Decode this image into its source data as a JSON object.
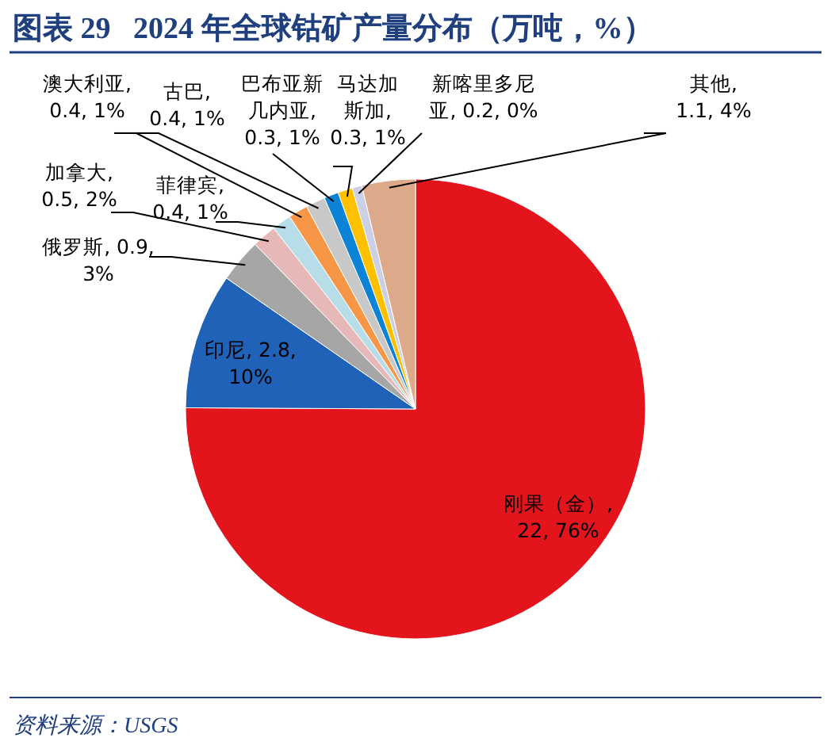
{
  "chart_data": {
    "type": "pie",
    "title": "图表 29   2024 年全球钴矿产量分布（万吨，%）",
    "categories": [
      "刚果（金）",
      "印尼",
      "俄罗斯",
      "加拿大",
      "菲律宾",
      "澳大利亚",
      "古巴",
      "巴布亚新几内亚",
      "马达加斯加",
      "新喀里多尼亚",
      "其他"
    ],
    "values": [
      22,
      2.8,
      0.9,
      0.5,
      0.4,
      0.4,
      0.4,
      0.3,
      0.3,
      0.2,
      1.1
    ],
    "value_labels": [
      ", 22, 76%",
      ", 2.8, 10%",
      ", 0.9, 3%",
      ", 0.5, 2%",
      ", 0.4, 1%",
      ", 0.4, 1%",
      ", 0.4, 1%",
      ", 0.3, 1%",
      ", 0.3, 1%",
      ", 0.2, 0%",
      ", 1.1, 4%"
    ],
    "colors": [
      "#e3141b",
      "#1f62b8",
      "#a6a6a6",
      "#e6b8b7",
      "#b7dde8",
      "#f79646",
      "#c8c8c8",
      "#0b84d8",
      "#ffc000",
      "#ccd0e6",
      "#dcaa8a"
    ],
    "annotations": [
      "资料来源：USGS"
    ]
  }
}
